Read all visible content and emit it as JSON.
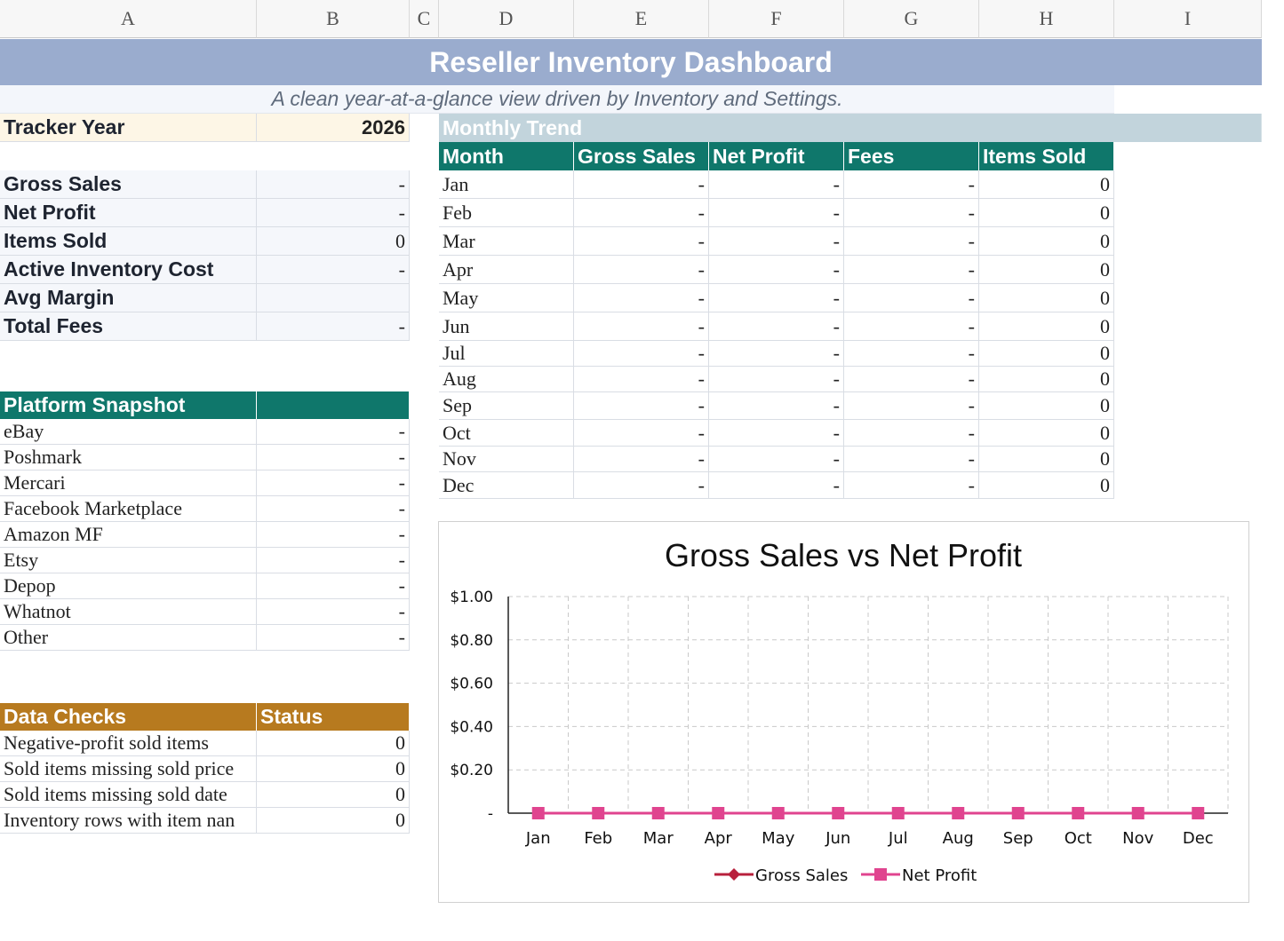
{
  "columns": [
    "A",
    "B",
    "C",
    "D",
    "E",
    "F",
    "G",
    "H",
    "I"
  ],
  "title": "Reseller Inventory Dashboard",
  "subtitle": "A clean year-at-a-glance view driven by Inventory and Settings.",
  "tracker": {
    "label": "Tracker Year",
    "value": "2026"
  },
  "kpis": [
    {
      "label": "Gross Sales",
      "value": "-"
    },
    {
      "label": "Net Profit",
      "value": "-"
    },
    {
      "label": "Items Sold",
      "value": "0"
    },
    {
      "label": "Active Inventory Cost",
      "value": "-"
    },
    {
      "label": "Avg Margin",
      "value": ""
    },
    {
      "label": "Total Fees",
      "value": "-"
    }
  ],
  "platform": {
    "header": "Platform Snapshot",
    "rows": [
      {
        "label": "eBay",
        "value": "-"
      },
      {
        "label": "Poshmark",
        "value": "-"
      },
      {
        "label": "Mercari",
        "value": "-"
      },
      {
        "label": "Facebook Marketplace",
        "value": "-"
      },
      {
        "label": "Amazon MF",
        "value": "-"
      },
      {
        "label": "Etsy",
        "value": "-"
      },
      {
        "label": "Depop",
        "value": "-"
      },
      {
        "label": "Whatnot",
        "value": "-"
      },
      {
        "label": "Other",
        "value": "-"
      }
    ]
  },
  "checks": {
    "header": "Data Checks",
    "status_header": "Status",
    "rows": [
      {
        "label": "Negative-profit sold items",
        "value": "0"
      },
      {
        "label": "Sold items missing sold price",
        "value": "0"
      },
      {
        "label": "Sold items missing sold date",
        "value": "0"
      },
      {
        "label": "Inventory rows with item nan",
        "value": "0"
      }
    ]
  },
  "trend": {
    "title": "Monthly Trend",
    "headers": [
      "Month",
      "Gross Sales",
      "Net Profit",
      "Fees",
      "Items Sold"
    ],
    "rows": [
      [
        "Jan",
        "-",
        "-",
        "-",
        "0"
      ],
      [
        "Feb",
        "-",
        "-",
        "-",
        "0"
      ],
      [
        "Mar",
        "-",
        "-",
        "-",
        "0"
      ],
      [
        "Apr",
        "-",
        "-",
        "-",
        "0"
      ],
      [
        "May",
        "-",
        "-",
        "-",
        "0"
      ],
      [
        "Jun",
        "-",
        "-",
        "-",
        "0"
      ],
      [
        "Jul",
        "-",
        "-",
        "-",
        "0"
      ],
      [
        "Aug",
        "-",
        "-",
        "-",
        "0"
      ],
      [
        "Sep",
        "-",
        "-",
        "-",
        "0"
      ],
      [
        "Oct",
        "-",
        "-",
        "-",
        "0"
      ],
      [
        "Nov",
        "-",
        "-",
        "-",
        "0"
      ],
      [
        "Dec",
        "-",
        "-",
        "-",
        "0"
      ]
    ]
  },
  "chart_data": {
    "type": "line",
    "title": "Gross Sales vs Net Profit",
    "categories": [
      "Jan",
      "Feb",
      "Mar",
      "Apr",
      "May",
      "Jun",
      "Jul",
      "Aug",
      "Sep",
      "Oct",
      "Nov",
      "Dec"
    ],
    "series": [
      {
        "name": "Gross Sales",
        "values": [
          0,
          0,
          0,
          0,
          0,
          0,
          0,
          0,
          0,
          0,
          0,
          0
        ],
        "color": "#b8203c",
        "marker": "diamond"
      },
      {
        "name": "Net Profit",
        "values": [
          0,
          0,
          0,
          0,
          0,
          0,
          0,
          0,
          0,
          0,
          0,
          0
        ],
        "color": "#e0448f",
        "marker": "square"
      }
    ],
    "yticks": [
      {
        "value": 0,
        "label": "-"
      },
      {
        "value": 0.2,
        "label": "$0.20"
      },
      {
        "value": 0.4,
        "label": "$0.40"
      },
      {
        "value": 0.6,
        "label": "$0.60"
      },
      {
        "value": 0.8,
        "label": "$0.80"
      },
      {
        "value": 1.0,
        "label": "$1.00"
      }
    ],
    "ylim": [
      0,
      1
    ],
    "grid": true,
    "legend": "bottom"
  }
}
